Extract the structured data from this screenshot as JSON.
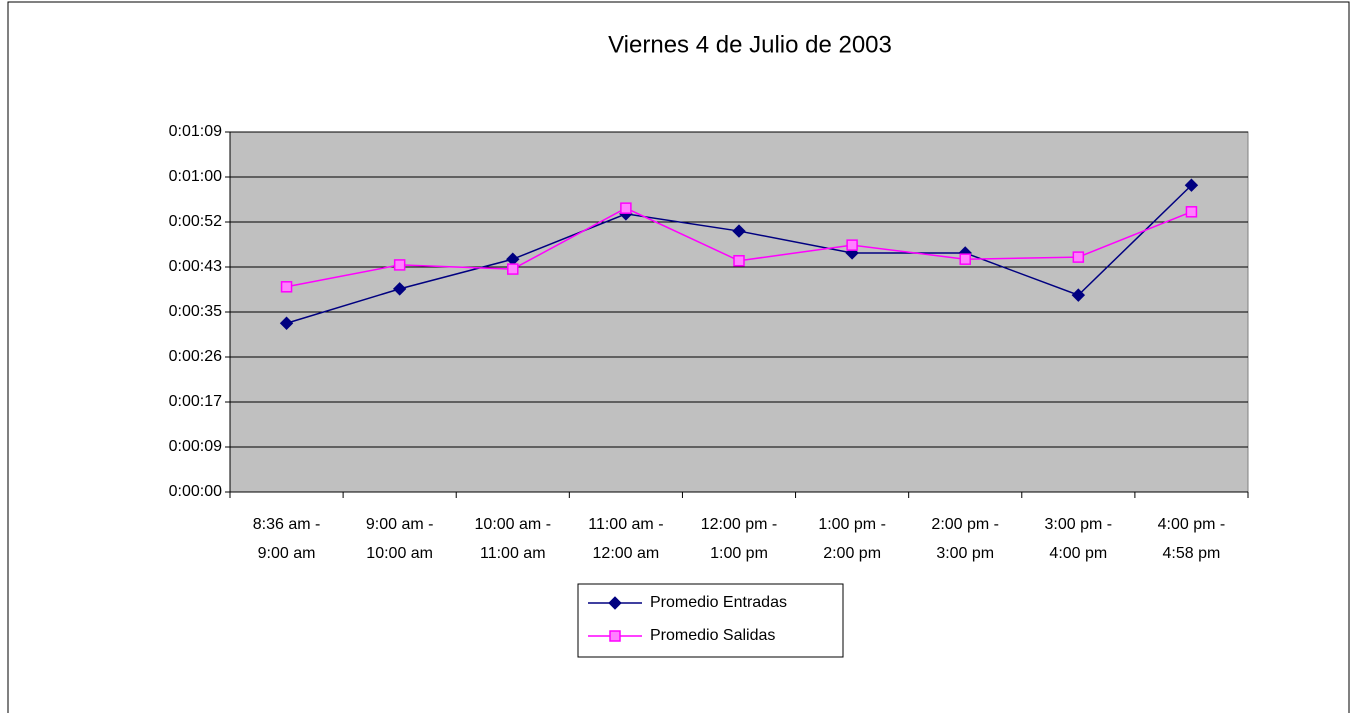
{
  "chart_data": {
    "type": "line",
    "title": "Viernes 4 de Julio de 2003",
    "categories": [
      [
        "8:36 am -",
        "9:00 am"
      ],
      [
        "9:00 am -",
        "10:00 am"
      ],
      [
        "10:00 am -",
        "11:00 am"
      ],
      [
        "11:00 am -",
        "12:00 am"
      ],
      [
        "12:00 pm -",
        "1:00 pm"
      ],
      [
        "1:00 pm -",
        "2:00 pm"
      ],
      [
        "2:00 pm -",
        "3:00 pm"
      ],
      [
        "3:00 pm -",
        "4:00 pm"
      ],
      [
        "4:00 pm -",
        "4:58 pm"
      ]
    ],
    "series": [
      {
        "name": "Promedio Entradas",
        "color": "#000080",
        "marker": "diamond",
        "values": [
          32.4,
          39.0,
          44.7,
          53.4,
          50.1,
          45.9,
          45.9,
          37.8,
          58.9
        ]
      },
      {
        "name": "Promedio Salidas",
        "color": "#ff00ff",
        "marker": "square",
        "values": [
          39.4,
          43.6,
          42.8,
          54.5,
          44.4,
          47.4,
          44.7,
          45.1,
          53.8
        ]
      }
    ],
    "ylim": [
      0,
      69.12
    ],
    "yticks": [
      {
        "value": 0,
        "label": "0:00:00"
      },
      {
        "value": 8.64,
        "label": "0:00:09"
      },
      {
        "value": 17.28,
        "label": "0:00:17"
      },
      {
        "value": 25.92,
        "label": "0:00:26"
      },
      {
        "value": 34.56,
        "label": "0:00:35"
      },
      {
        "value": 43.2,
        "label": "0:00:43"
      },
      {
        "value": 51.84,
        "label": "0:00:52"
      },
      {
        "value": 60.48,
        "label": "0:01:00"
      },
      {
        "value": 69.12,
        "label": "0:01:09"
      }
    ],
    "grid": true,
    "legend": "bottom"
  }
}
